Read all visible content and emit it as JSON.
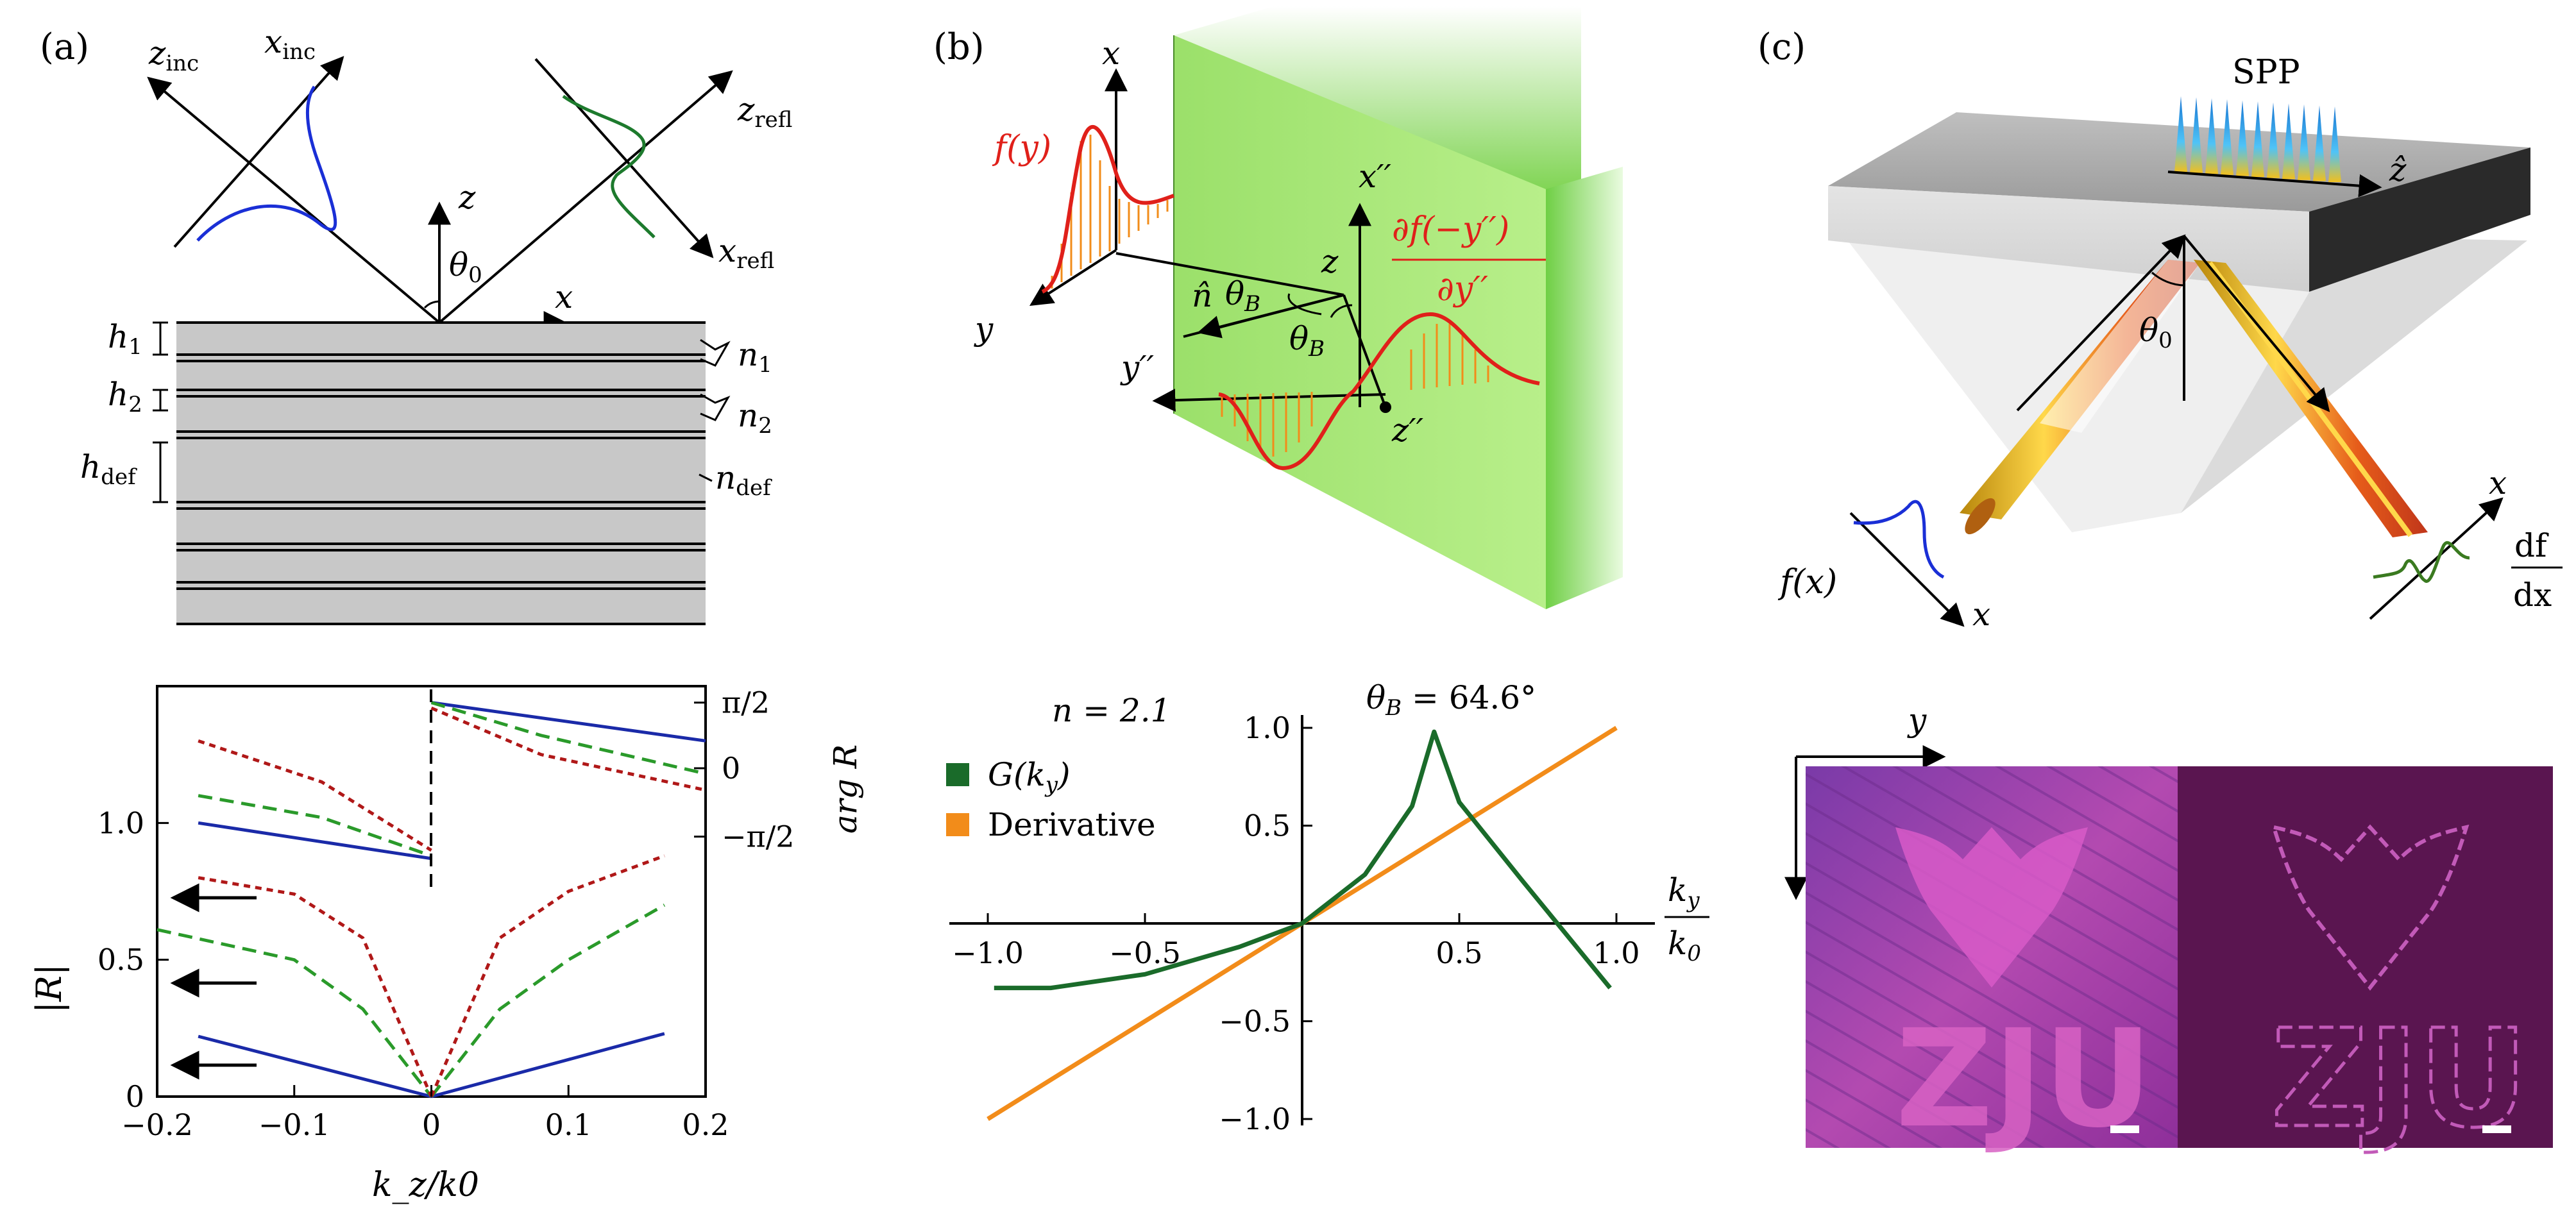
{
  "panels": {
    "a": {
      "label": "(a)",
      "top": {
        "z_inc": "z",
        "z_inc_sub": "inc",
        "x_inc": "x",
        "x_inc_sub": "inc",
        "z_refl": "z",
        "z_refl_sub": "refl",
        "x_refl": "x",
        "x_refl_sub": "refl",
        "z_axis": "z",
        "x_axis": "x",
        "theta": "θ",
        "theta_sub": "0",
        "h1": "h",
        "h1_sub": "1",
        "h2": "h",
        "h2_sub": "2",
        "hdef": "h",
        "hdef_sub": "def",
        "n1": "n",
        "n1_sub": "1",
        "n2": "n",
        "n2_sub": "2",
        "ndef": "n",
        "ndef_sub": "def"
      },
      "bottom": {
        "ylabel": "|R|",
        "ylabel_right": "arg R",
        "xlabel": "k_z/k0",
        "yticks": [
          "0",
          "0.5",
          "1.0"
        ],
        "yticks_right": [
          "π/2",
          "0",
          "−π/2"
        ],
        "xticks": [
          "−0.2",
          "−0.1",
          "0",
          "0.1",
          "0.2"
        ]
      }
    },
    "b": {
      "label": "(b)",
      "top": {
        "x": "x",
        "y": "y",
        "z": "z",
        "fy": "f(y)",
        "nhat": "n̂",
        "thetaB": "θ",
        "thetaB_sub": "B",
        "x2": "x′′",
        "y2": "y′′",
        "z2": "z′′",
        "deriv_num": "∂f(−y′′)",
        "deriv_den": "∂y′′"
      },
      "bottom": {
        "n_label": "n = 2.1",
        "theta_label": "θ",
        "theta_sub": "B",
        "theta_value": " = 64.6°",
        "legend": [
          {
            "label": "G(k",
            "sub": "y",
            "tail": ")",
            "color": "#1a6b2a"
          },
          {
            "label": "Derivative",
            "sub": "",
            "tail": "",
            "color": "#f28c1a"
          }
        ],
        "xlabel_num": "k",
        "xlabel_num_sub": "y",
        "xlabel_den": "k",
        "xlabel_den_sub": "0",
        "xticks": [
          "−1.0",
          "−0.5",
          "0.5",
          "1.0"
        ],
        "yticks": [
          "1.0",
          "0.5",
          "−0.5",
          "−1.0"
        ]
      }
    },
    "c": {
      "label": "(c)",
      "top": {
        "spp": "SPP",
        "zhat": "ẑ",
        "theta": "θ",
        "theta_sub": "0",
        "fx": "f(x)",
        "x_left": "x",
        "x_right": "x",
        "df": "df",
        "dx": "dx"
      },
      "bottom": {
        "y_axis": "y",
        "left_text": "ZJU",
        "right_text": "ZJU"
      }
    }
  },
  "chart_data": [
    {
      "type": "line",
      "panel": "a-bottom",
      "xlabel": "k_z/k0",
      "ylabel": "|R|",
      "ylabel_right": "arg R",
      "xlim": [
        -0.2,
        0.2
      ],
      "ylim": [
        0,
        1.5
      ],
      "series": [
        {
          "style": "solid-blue",
          "x": [
            -0.17,
            0.0,
            0.17
          ],
          "y": [
            0.22,
            0.0,
            0.23
          ]
        },
        {
          "style": "dashed-green",
          "x": [
            -0.2,
            -0.1,
            -0.05,
            0.0,
            0.05,
            0.1,
            0.17
          ],
          "y": [
            0.61,
            0.5,
            0.32,
            0.0,
            0.32,
            0.5,
            0.7
          ]
        },
        {
          "style": "dotted-red",
          "x": [
            -0.17,
            -0.1,
            -0.05,
            0.0,
            0.05,
            0.1,
            0.17
          ],
          "y": [
            0.8,
            0.74,
            0.58,
            0.0,
            0.58,
            0.75,
            0.88
          ]
        }
      ]
    },
    {
      "type": "line",
      "panel": "b-bottom",
      "title": "θB = 64.6°",
      "xlabel": "ky/k0",
      "xlim": [
        -1.0,
        1.0
      ],
      "ylim": [
        -1.0,
        1.0
      ],
      "series": [
        {
          "name": "G(ky)",
          "x": [
            -0.98,
            -0.8,
            -0.5,
            -0.2,
            0.0,
            0.2,
            0.35,
            0.42,
            0.5,
            0.7,
            0.98
          ],
          "y": [
            -0.33,
            -0.33,
            -0.26,
            -0.12,
            0.0,
            0.25,
            0.6,
            0.98,
            0.62,
            0.22,
            -0.33
          ]
        },
        {
          "name": "Derivative",
          "x": [
            -1.0,
            1.0
          ],
          "y": [
            -1.0,
            1.0
          ]
        }
      ]
    }
  ]
}
